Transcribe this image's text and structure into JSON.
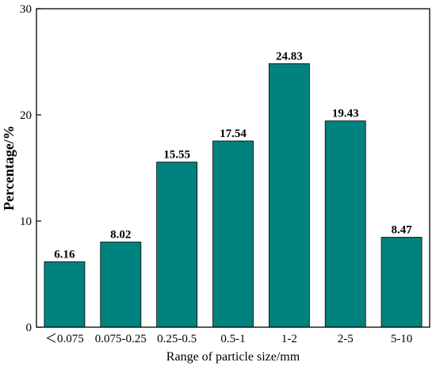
{
  "chart_data": {
    "type": "bar",
    "categories": [
      "＜0.075",
      "0.075-0.25",
      "0.25-0.5",
      "0.5-1",
      "1-2",
      "2-5",
      "5-10"
    ],
    "values": [
      6.16,
      8.02,
      15.55,
      17.54,
      24.83,
      19.43,
      8.47
    ],
    "data_labels": [
      "6.16",
      "8.02",
      "15.55",
      "17.54",
      "24.83",
      "19.43",
      "8.47"
    ],
    "xlabel": "Range of particle size/mm",
    "ylabel": "Percentage/%",
    "ylim": [
      0,
      30
    ],
    "yticks": [
      0,
      10,
      20,
      30
    ],
    "ytick_labels": [
      "0",
      "10",
      "20",
      "30"
    ],
    "bar_color": "#00827f",
    "grid": false,
    "legend": "none"
  }
}
